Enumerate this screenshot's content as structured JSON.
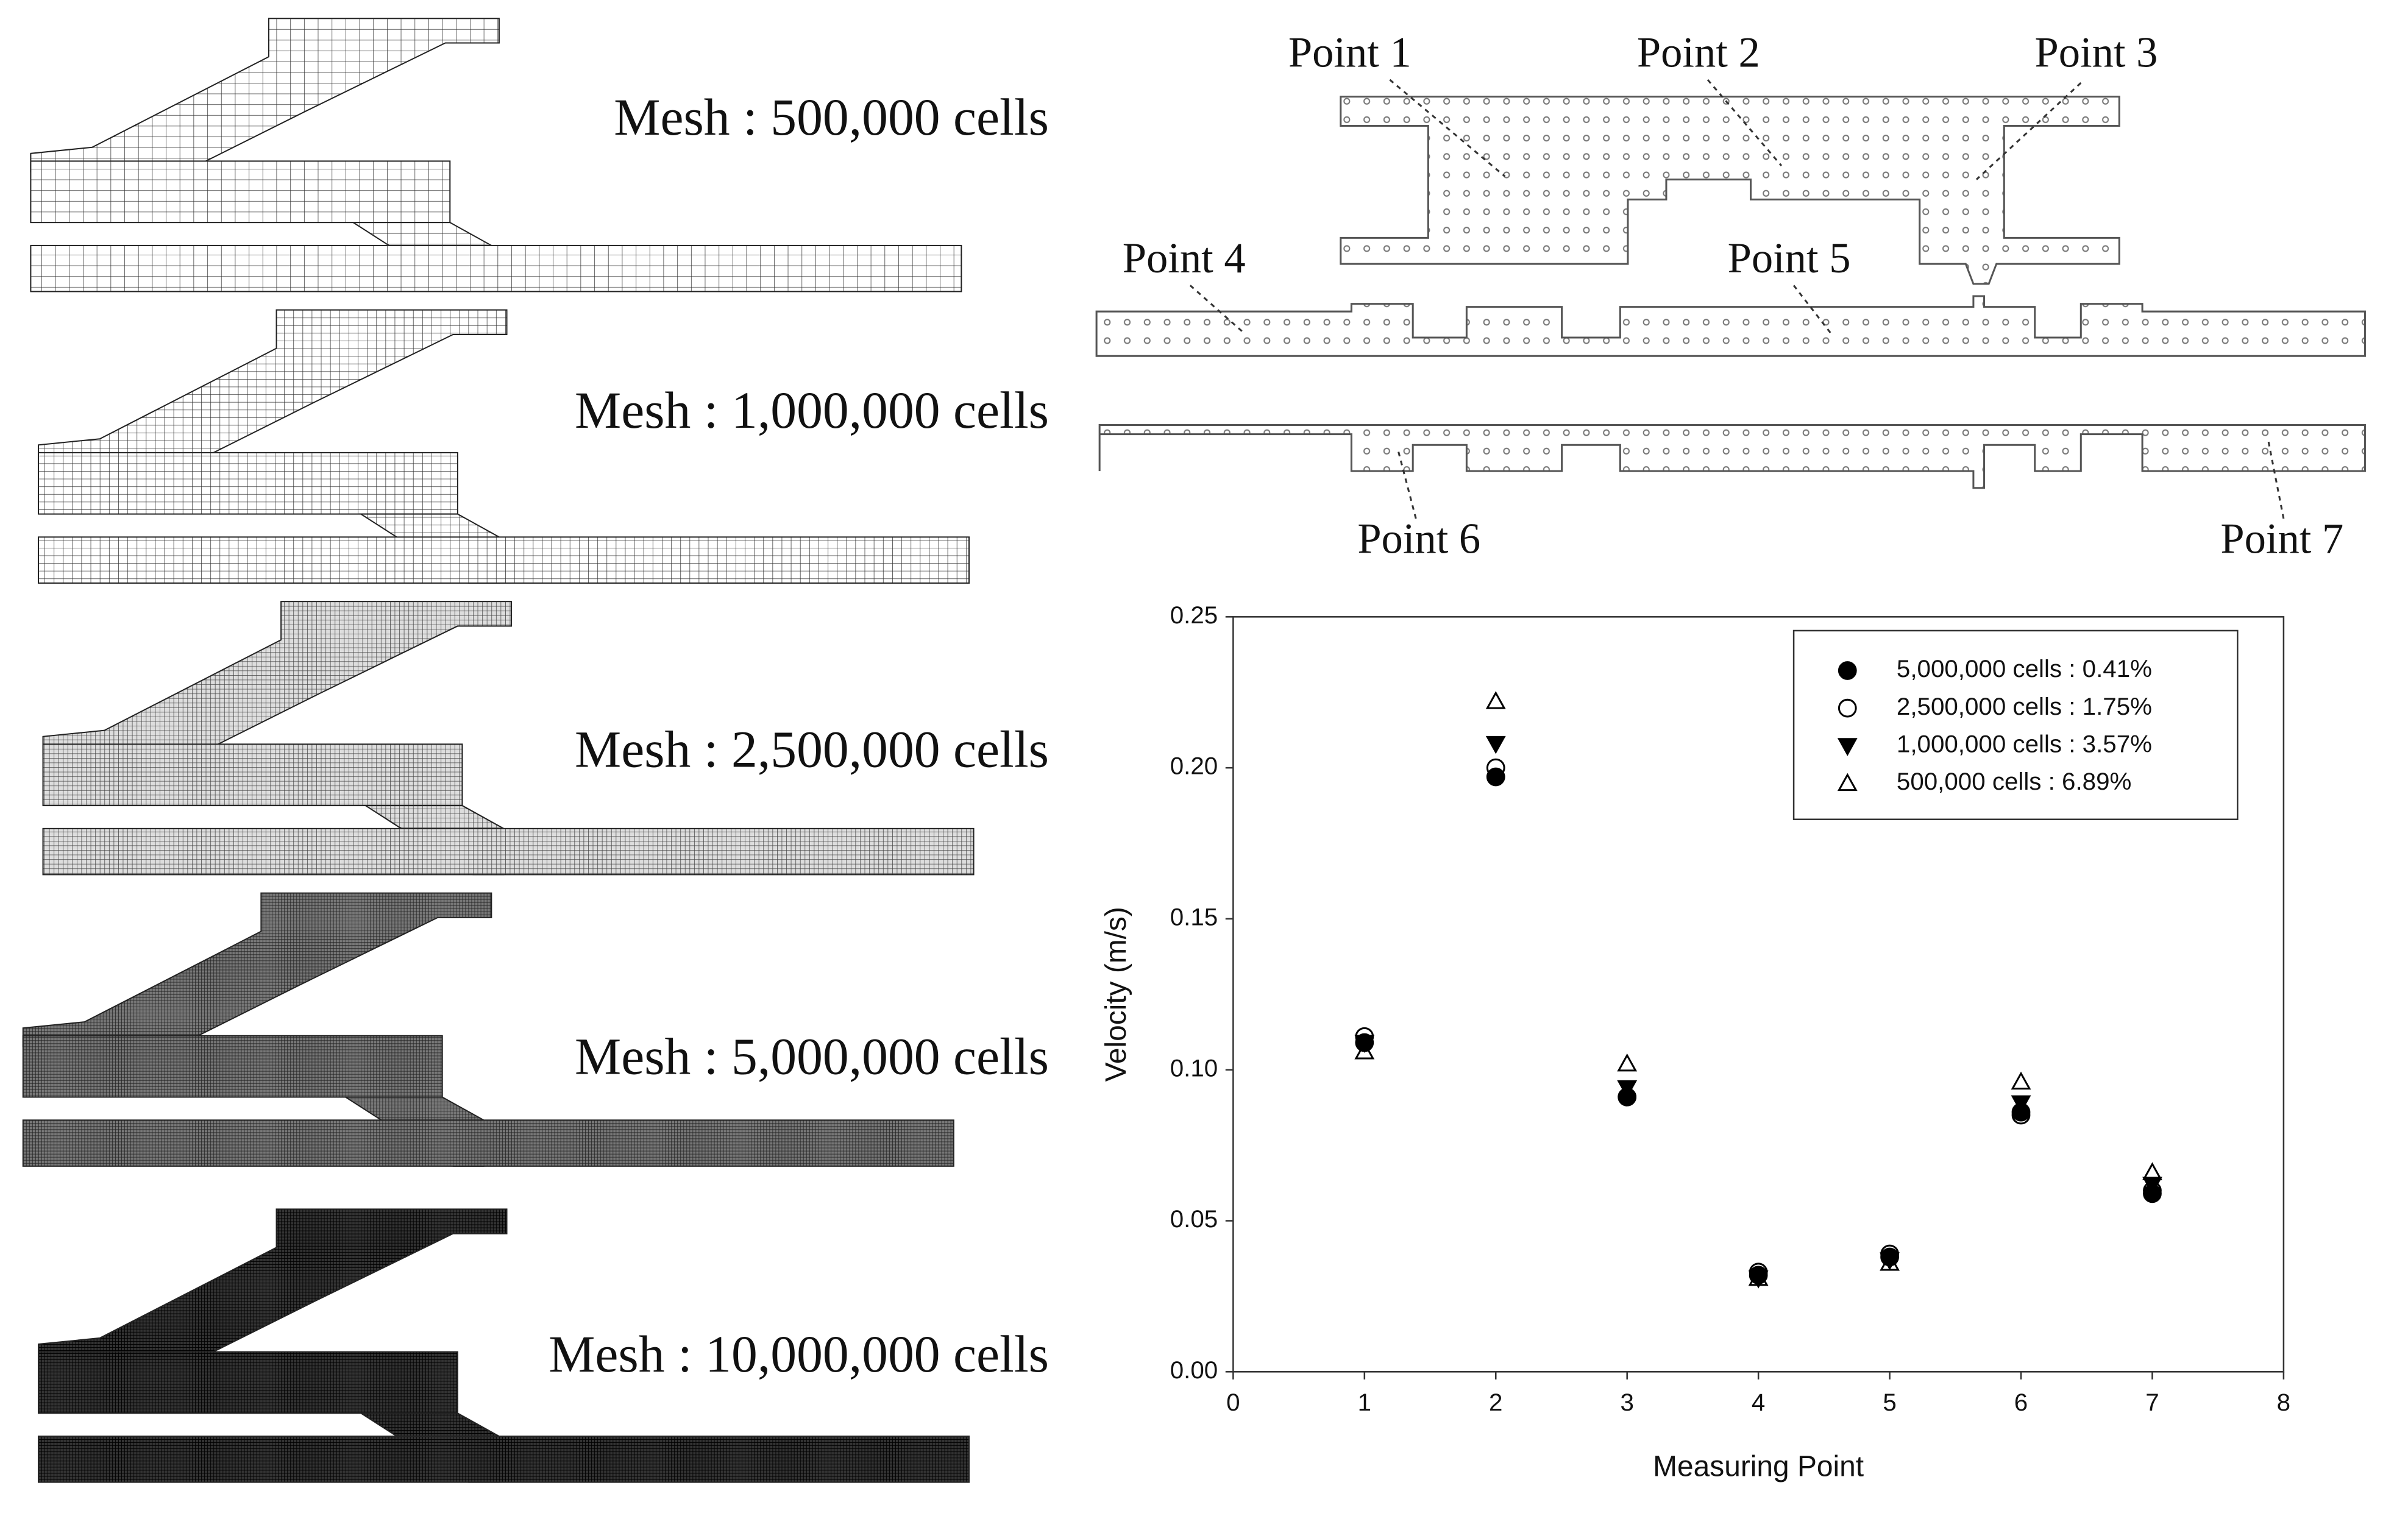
{
  "mesh_labels": [
    "Mesh : 500,000 cells",
    "Mesh : 1,000,000 cells",
    "Mesh : 2,500,000 cells",
    "Mesh : 5,000,000 cells",
    "Mesh : 10,000,000 cells"
  ],
  "plan": {
    "points": [
      "Point 1",
      "Point 2",
      "Point 3",
      "Point 4",
      "Point 5",
      "Point 6",
      "Point 7"
    ]
  },
  "chart_data": {
    "type": "scatter",
    "x": [
      1,
      2,
      3,
      4,
      5,
      6,
      7
    ],
    "xlabel": "Measuring Point",
    "ylabel": "Velocity (m/s)",
    "xlim": [
      0,
      8
    ],
    "xticks": [
      0,
      1,
      2,
      3,
      4,
      5,
      6,
      7,
      8
    ],
    "ylim": [
      0,
      0.25
    ],
    "yticks": [
      {
        "value": 0,
        "label": "0.00"
      },
      0.05,
      {
        "value": 0.1,
        "label": "0.10"
      },
      0.15,
      {
        "value": 0.2,
        "label": "0.20"
      },
      0.25
    ],
    "legend": "upper right",
    "series": [
      {
        "name": "5,000,000 cells : 0.41%",
        "color": "#000000",
        "marker": "circle",
        "filled": true,
        "values": [
          0.109,
          0.197,
          0.091,
          0.032,
          0.038,
          0.086,
          0.059
        ]
      },
      {
        "name": "2,500,000 cells : 1.75%",
        "color": "#000000",
        "marker": "circle",
        "filled": false,
        "values": [
          0.111,
          0.2,
          0.091,
          0.033,
          0.039,
          0.085,
          0.06
        ]
      },
      {
        "name": "1,000,000 cells : 3.57%",
        "color": "#000000",
        "marker": "triangle-down",
        "filled": true,
        "values": [
          0.109,
          0.208,
          0.094,
          0.031,
          0.037,
          0.089,
          0.062
        ]
      },
      {
        "name": "500,000 cells : 6.89%",
        "color": "#000000",
        "marker": "triangle-up",
        "filled": false,
        "values": [
          0.106,
          0.222,
          0.102,
          0.031,
          0.036,
          0.096,
          0.066
        ]
      }
    ]
  }
}
